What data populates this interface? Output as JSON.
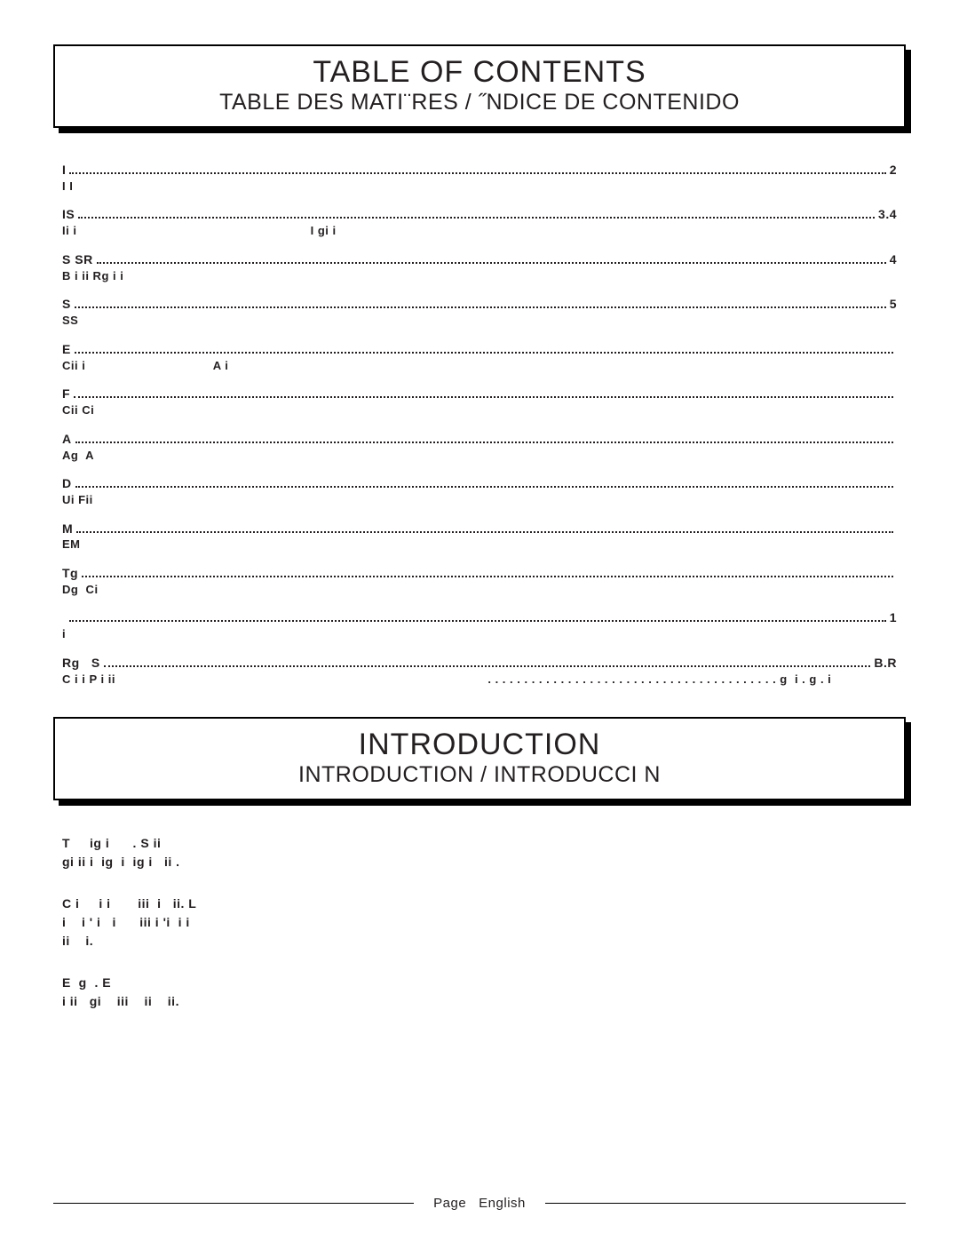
{
  "header1": {
    "main": "TABLE OF CONTENTS",
    "sub": "TABLE DES MATI¨RES / ˝NDICE DE CONTENIDO"
  },
  "toc": [
    {
      "label": "I",
      "page": "2",
      "sub": "I I"
    },
    {
      "label": "IS",
      "page": "3.4",
      "sub": "Ii i                                                                I gi i"
    },
    {
      "label": "S SR",
      "page": "4",
      "sub": "B i ii Rg i i"
    },
    {
      "label": "S",
      "page": "5",
      "sub": "SS"
    },
    {
      "label": "E",
      "page": "",
      "sub": "Cii i                                   A i"
    },
    {
      "label": "F",
      "page": "",
      "sub": "Cii Ci"
    },
    {
      "label": "A",
      "page": "",
      "sub": "Ag  A"
    },
    {
      "label": "D",
      "page": "",
      "sub": "Ui Fii"
    },
    {
      "label": "M",
      "page": "",
      "sub": "EM"
    },
    {
      "label": "Tg",
      "page": "",
      "sub": "Dg  Ci"
    },
    {
      "label": " ",
      "page": "1",
      "sub": "i"
    },
    {
      "label": "Rg   S",
      "page": "B.R",
      "sub": "C i i P i ii                                                                                                      . . . . . . . . . . . . . . . . . . . . . . . . . . . . . . . . . . . . . . . . g  i . g . i"
    }
  ],
  "header2": {
    "main": "INTRODUCTION",
    "sub": "INTRODUCTION / INTRODUCCI N"
  },
  "intro": [
    "T     ig i      . S ii\ngi ii i  ig  i  ig i   ii .",
    "C i     i i       iii  i   ii. L\ni    i ' i   i      iii i 'i  i i\nii    i.",
    "E  g  . E\ni ii   gi    iii    ii    ii."
  ],
  "footer": "Page   English"
}
